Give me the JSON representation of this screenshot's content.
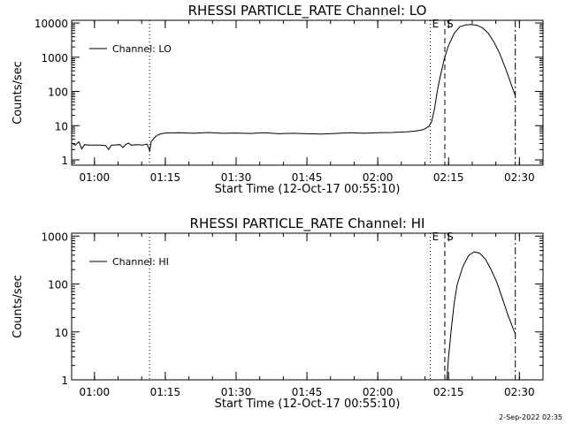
{
  "footer": {
    "stamp": "2-Sep-2022 02:35"
  },
  "chart_data": [
    {
      "type": "line",
      "title": "RHESSI PARTICLE_RATE Channel: LO",
      "xlabel": "Start Time (12-Oct-17 00:55:10)",
      "ylabel": "Counts/sec",
      "x_unit": "time of day (hours, decimal)",
      "xlim": [
        0.9194,
        2.5833
      ],
      "ylim": [
        0.7,
        12000
      ],
      "y_scale": "log",
      "x_ticks": [
        {
          "value": 1.0,
          "label": "01:00"
        },
        {
          "value": 1.25,
          "label": "01:15"
        },
        {
          "value": 1.5,
          "label": "01:30"
        },
        {
          "value": 1.75,
          "label": "01:45"
        },
        {
          "value": 2.0,
          "label": "02:00"
        },
        {
          "value": 2.25,
          "label": "02:15"
        },
        {
          "value": 2.5,
          "label": "02:30"
        }
      ],
      "y_ticks": [
        {
          "value": 1,
          "label": "1"
        },
        {
          "value": 10,
          "label": "10"
        },
        {
          "value": 100,
          "label": "100"
        },
        {
          "value": 1000,
          "label": "1000"
        },
        {
          "value": 10000,
          "label": "10000"
        }
      ],
      "legend": {
        "position": "top-left",
        "label": "Channel: LO"
      },
      "markers": [
        {
          "x": 1.1944,
          "style": "dotted",
          "label": ""
        },
        {
          "x": 2.1856,
          "style": "dotted",
          "label": "E"
        },
        {
          "x": 2.2367,
          "style": "dashed",
          "label": "S"
        },
        {
          "x": 2.4856,
          "style": "dashdot",
          "label": ""
        }
      ],
      "series": [
        {
          "name": "Channel: LO",
          "points": [
            [
              0.9194,
              3.1
            ],
            [
              0.933,
              2.7
            ],
            [
              0.945,
              3.4
            ],
            [
              0.955,
              2.1
            ],
            [
              0.965,
              2.8
            ],
            [
              0.98,
              2.7
            ],
            [
              1.0,
              2.7
            ],
            [
              1.02,
              2.7
            ],
            [
              1.04,
              2.6
            ],
            [
              1.05,
              2.0
            ],
            [
              1.06,
              2.7
            ],
            [
              1.07,
              2.7
            ],
            [
              1.09,
              2.8
            ],
            [
              1.1,
              2.3
            ],
            [
              1.11,
              2.8
            ],
            [
              1.12,
              3.1
            ],
            [
              1.13,
              2.7
            ],
            [
              1.15,
              2.8
            ],
            [
              1.17,
              2.7
            ],
            [
              1.185,
              2.9
            ],
            [
              1.19,
              2.4
            ],
            [
              1.195,
              1.8
            ],
            [
              1.2,
              3.4
            ],
            [
              1.21,
              4.3
            ],
            [
              1.22,
              5.2
            ],
            [
              1.235,
              5.8
            ],
            [
              1.25,
              6.1
            ],
            [
              1.3,
              6.2
            ],
            [
              1.35,
              6.0
            ],
            [
              1.4,
              6.3
            ],
            [
              1.45,
              6.0
            ],
            [
              1.5,
              6.1
            ],
            [
              1.55,
              5.9
            ],
            [
              1.6,
              6.2
            ],
            [
              1.65,
              5.8
            ],
            [
              1.7,
              6.0
            ],
            [
              1.75,
              5.8
            ],
            [
              1.8,
              5.7
            ],
            [
              1.85,
              5.9
            ],
            [
              1.9,
              6.2
            ],
            [
              1.95,
              6.0
            ],
            [
              2.0,
              6.2
            ],
            [
              2.05,
              6.3
            ],
            [
              2.1,
              6.6
            ],
            [
              2.13,
              6.9
            ],
            [
              2.16,
              7.6
            ],
            [
              2.18,
              9.5
            ],
            [
              2.19,
              13
            ],
            [
              2.2,
              30
            ],
            [
              2.21,
              100
            ],
            [
              2.22,
              260
            ],
            [
              2.235,
              900
            ],
            [
              2.25,
              2200
            ],
            [
              2.27,
              5000
            ],
            [
              2.29,
              7800
            ],
            [
              2.31,
              8800
            ],
            [
              2.33,
              9000
            ],
            [
              2.35,
              8600
            ],
            [
              2.37,
              7200
            ],
            [
              2.39,
              5000
            ],
            [
              2.41,
              2800
            ],
            [
              2.43,
              1300
            ],
            [
              2.45,
              500
            ],
            [
              2.47,
              170
            ],
            [
              2.4856,
              75
            ]
          ]
        }
      ]
    },
    {
      "type": "line",
      "title": "RHESSI PARTICLE_RATE Channel: HI",
      "xlabel": "Start Time (12-Oct-17 00:55:10)",
      "ylabel": "Counts/sec",
      "x_unit": "time of day (hours, decimal)",
      "xlim": [
        0.9194,
        2.5833
      ],
      "ylim": [
        1,
        1150
      ],
      "y_scale": "log",
      "x_ticks": [
        {
          "value": 1.0,
          "label": "01:00"
        },
        {
          "value": 1.25,
          "label": "01:15"
        },
        {
          "value": 1.5,
          "label": "01:30"
        },
        {
          "value": 1.75,
          "label": "01:45"
        },
        {
          "value": 2.0,
          "label": "02:00"
        },
        {
          "value": 2.25,
          "label": "02:15"
        },
        {
          "value": 2.5,
          "label": "02:30"
        }
      ],
      "y_ticks": [
        {
          "value": 1,
          "label": "1"
        },
        {
          "value": 10,
          "label": "10"
        },
        {
          "value": 100,
          "label": "100"
        },
        {
          "value": 1000,
          "label": "1000"
        }
      ],
      "legend": {
        "position": "top-left",
        "label": "Channel: HI"
      },
      "markers": [
        {
          "x": 1.1944,
          "style": "dotted",
          "label": ""
        },
        {
          "x": 2.1856,
          "style": "dotted",
          "label": "E"
        },
        {
          "x": 2.2367,
          "style": "dashed",
          "label": "S"
        },
        {
          "x": 2.4856,
          "style": "dashdot",
          "label": ""
        }
      ],
      "series": [
        {
          "name": "Channel: HI",
          "points": [
            [
              2.244,
              1.0
            ],
            [
              2.25,
              3.0
            ],
            [
              2.26,
              12
            ],
            [
              2.27,
              40
            ],
            [
              2.28,
              95
            ],
            [
              2.3,
              230
            ],
            [
              2.32,
              390
            ],
            [
              2.34,
              470
            ],
            [
              2.36,
              440
            ],
            [
              2.38,
              330
            ],
            [
              2.4,
              200
            ],
            [
              2.42,
              110
            ],
            [
              2.44,
              50
            ],
            [
              2.46,
              22
            ],
            [
              2.4856,
              9
            ]
          ]
        }
      ]
    }
  ]
}
